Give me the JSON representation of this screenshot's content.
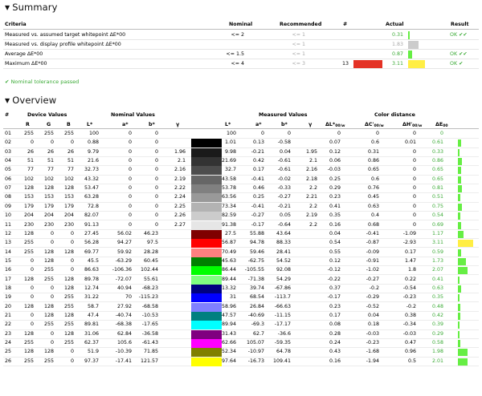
{
  "summary": {
    "title": "Summary",
    "headers": {
      "criteria": "Criteria",
      "nominal": "Nominal",
      "recommended": "Recommended",
      "num": "#",
      "actual": "Actual",
      "result": "Result"
    },
    "rows": [
      {
        "criteria": "Measured vs. assumed target whitepoint ΔE*00",
        "nominal": "<= 2",
        "recommended": "<= 1",
        "num": "",
        "actual": "0.31",
        "result": "OK ✔✔",
        "bar_color": "#66ee44",
        "bar_frac": 0.05,
        "actual_color": "#3aaa35"
      },
      {
        "criteria": "Measured vs. display profile whitepoint ΔE*00",
        "nominal": "",
        "recommended": "<= 1",
        "num": "",
        "actual": "1.83",
        "result": "",
        "bar_color": "#cccccc",
        "bar_frac": 0.35,
        "actual_color": "#a9a9a9"
      },
      {
        "criteria": "Average ΔE*00",
        "nominal": "<= 1.5",
        "recommended": "<= 1",
        "num": "",
        "actual": "0.87",
        "result": "OK ✔✔",
        "bar_color": "#66ee44",
        "bar_frac": 0.14,
        "actual_color": "#3aaa35"
      },
      {
        "criteria": "Maximum ΔE*00",
        "nominal": "<= 4",
        "recommended": "<= 3",
        "num": "13",
        "actual": "3.11",
        "result": "OK ✔",
        "bar_color": "#ffee44",
        "bar_frac": 0.55,
        "actual_color": "#3aaa35"
      }
    ],
    "note": "✔ Nominal tolerance passed"
  },
  "overview": {
    "title": "Overview",
    "group_headers": {
      "device": "Device Values",
      "nominal": "Nominal Values",
      "measured": "Measured Values",
      "distance": "Color distance"
    },
    "col_headers": {
      "num": "#",
      "r": "R",
      "g": "G",
      "b": "B",
      "L": "L*",
      "a": "a*",
      "bb": "b*",
      "gamma": "γ",
      "mL": "L*",
      "ma": "a*",
      "mb": "b*",
      "mgamma": "γ",
      "dL": "ΔL*",
      "dC": "ΔC'",
      "dH": "ΔH'",
      "sub": "00/w",
      "dE": "ΔE",
      "dEsub": "00"
    },
    "rows": [
      [
        "01",
        "255",
        "255",
        "255",
        "100",
        "0",
        "0",
        "",
        "#ffffff",
        "100",
        "0",
        "0",
        "",
        "0",
        "0",
        "0",
        "0",
        "#66ee44"
      ],
      [
        "02",
        "0",
        "0",
        "0",
        "0.88",
        "0",
        "0",
        "",
        "#000000",
        "1.01",
        "0.13",
        "-0.58",
        "",
        "0.07",
        "0.6",
        "0.01",
        "0.61",
        "#66ee44"
      ],
      [
        "03",
        "26",
        "26",
        "26",
        "9.79",
        "0",
        "0",
        "1.96",
        "#1a1a1a",
        "9.98",
        "-0.21",
        "0.04",
        "1.95",
        "0.12",
        "0.31",
        "0",
        "0.33",
        "#66ee44"
      ],
      [
        "04",
        "51",
        "51",
        "51",
        "21.6",
        "0",
        "0",
        "2.1",
        "#333333",
        "21.69",
        "0.42",
        "-0.61",
        "2.1",
        "0.06",
        "0.86",
        "0",
        "0.86",
        "#66ee44"
      ],
      [
        "05",
        "77",
        "77",
        "77",
        "32.73",
        "0",
        "0",
        "2.16",
        "#4d4d4d",
        "32.7",
        "0.17",
        "-0.61",
        "2.16",
        "-0.03",
        "0.65",
        "0",
        "0.65",
        "#66ee44"
      ],
      [
        "06",
        "102",
        "102",
        "102",
        "43.32",
        "0",
        "0",
        "2.19",
        "#666666",
        "43.58",
        "-0.41",
        "-0.02",
        "2.18",
        "0.25",
        "0.6",
        "0",
        "0.65",
        "#66ee44"
      ],
      [
        "07",
        "128",
        "128",
        "128",
        "53.47",
        "0",
        "0",
        "2.22",
        "#808080",
        "53.78",
        "0.46",
        "-0.33",
        "2.2",
        "0.29",
        "0.76",
        "0",
        "0.81",
        "#66ee44"
      ],
      [
        "08",
        "153",
        "153",
        "153",
        "63.28",
        "0",
        "0",
        "2.24",
        "#999999",
        "63.56",
        "0.25",
        "-0.27",
        "2.21",
        "0.23",
        "0.45",
        "0",
        "0.51",
        "#66ee44"
      ],
      [
        "09",
        "179",
        "179",
        "179",
        "72.8",
        "0",
        "0",
        "2.25",
        "#b3b3b3",
        "73.34",
        "-0.41",
        "-0.21",
        "2.2",
        "0.41",
        "0.63",
        "0",
        "0.75",
        "#66ee44"
      ],
      [
        "10",
        "204",
        "204",
        "204",
        "82.07",
        "0",
        "0",
        "2.26",
        "#cccccc",
        "82.59",
        "-0.27",
        "0.05",
        "2.19",
        "0.35",
        "0.4",
        "0",
        "0.54",
        "#66ee44"
      ],
      [
        "11",
        "230",
        "230",
        "230",
        "91.13",
        "0",
        "0",
        "2.27",
        "#e6e6e6",
        "91.38",
        "-0.17",
        "-0.64",
        "2.2",
        "0.16",
        "0.68",
        "0",
        "0.69",
        "#66ee44"
      ],
      [
        "12",
        "128",
        "0",
        "0",
        "27.45",
        "56.02",
        "46.23",
        "",
        "#800000",
        "27.5",
        "55.88",
        "43.64",
        "",
        "0.04",
        "-0.41",
        "-1.09",
        "1.17",
        "#66ee44"
      ],
      [
        "13",
        "255",
        "0",
        "0",
        "56.28",
        "94.27",
        "97.5",
        "",
        "#ff0000",
        "56.87",
        "94.78",
        "88.33",
        "",
        "0.54",
        "-0.87",
        "-2.93",
        "3.11",
        "#ffee44"
      ],
      [
        "14",
        "255",
        "128",
        "128",
        "69.77",
        "59.92",
        "28.28",
        "",
        "#ff8080",
        "70.49",
        "59.46",
        "28.41",
        "",
        "0.55",
        "-0.09",
        "0.17",
        "0.59",
        "#66ee44"
      ],
      [
        "15",
        "0",
        "128",
        "0",
        "45.5",
        "-63.29",
        "60.45",
        "",
        "#008000",
        "45.63",
        "-62.75",
        "54.52",
        "",
        "0.12",
        "-0.91",
        "1.47",
        "1.73",
        "#66ee44"
      ],
      [
        "16",
        "0",
        "255",
        "0",
        "86.63",
        "-106.36",
        "102.44",
        "",
        "#00ff00",
        "86.44",
        "-105.55",
        "92.08",
        "",
        "-0.12",
        "-1.02",
        "1.8",
        "2.07",
        "#66ee44"
      ],
      [
        "17",
        "128",
        "255",
        "128",
        "89.78",
        "-72.07",
        "55.61",
        "",
        "#80ff80",
        "89.44",
        "-71.38",
        "54.29",
        "",
        "-0.22",
        "-0.27",
        "0.22",
        "0.41",
        "#66ee44"
      ],
      [
        "18",
        "0",
        "0",
        "128",
        "12.74",
        "40.94",
        "-68.23",
        "",
        "#000080",
        "13.32",
        "39.74",
        "-67.86",
        "",
        "0.37",
        "-0.2",
        "-0.54",
        "0.63",
        "#66ee44"
      ],
      [
        "19",
        "0",
        "0",
        "255",
        "31.22",
        "70",
        "-115.23",
        "",
        "#0000ff",
        "31",
        "68.54",
        "-113.7",
        "",
        "-0.17",
        "-0.29",
        "-0.23",
        "0.35",
        "#66ee44"
      ],
      [
        "20",
        "128",
        "128",
        "255",
        "58.7",
        "27.92",
        "-68.58",
        "",
        "#8080ff",
        "58.96",
        "26.84",
        "-66.63",
        "",
        "0.23",
        "-0.52",
        "-0.2",
        "0.48",
        "#66ee44"
      ],
      [
        "21",
        "0",
        "128",
        "128",
        "47.4",
        "-40.74",
        "-10.53",
        "",
        "#008080",
        "47.57",
        "-40.69",
        "-11.15",
        "",
        "0.17",
        "0.04",
        "0.38",
        "0.42",
        "#66ee44"
      ],
      [
        "22",
        "0",
        "255",
        "255",
        "89.81",
        "-68.38",
        "-17.65",
        "",
        "#00ffff",
        "89.94",
        "-69.3",
        "-17.17",
        "",
        "0.08",
        "0.18",
        "-0.34",
        "0.39",
        "#66ee44"
      ],
      [
        "23",
        "128",
        "0",
        "128",
        "31.06",
        "62.84",
        "-36.58",
        "",
        "#800080",
        "31.43",
        "62.7",
        "-36.6",
        "",
        "0.28",
        "-0.03",
        "-0.03",
        "0.29",
        "#66ee44"
      ],
      [
        "24",
        "255",
        "0",
        "255",
        "62.37",
        "105.6",
        "-61.43",
        "",
        "#ff00ff",
        "62.66",
        "105.07",
        "-59.35",
        "",
        "0.24",
        "-0.23",
        "0.47",
        "0.58",
        "#66ee44"
      ],
      [
        "25",
        "128",
        "128",
        "0",
        "51.9",
        "-10.39",
        "71.85",
        "",
        "#808000",
        "52.34",
        "-10.97",
        "64.78",
        "",
        "0.43",
        "-1.68",
        "0.96",
        "1.98",
        "#66ee44"
      ],
      [
        "26",
        "255",
        "255",
        "0",
        "97.37",
        "-17.41",
        "121.57",
        "",
        "#ffff00",
        "97.64",
        "-16.73",
        "109.41",
        "",
        "0.16",
        "-1.94",
        "0.5",
        "2.01",
        "#66ee44"
      ]
    ]
  }
}
